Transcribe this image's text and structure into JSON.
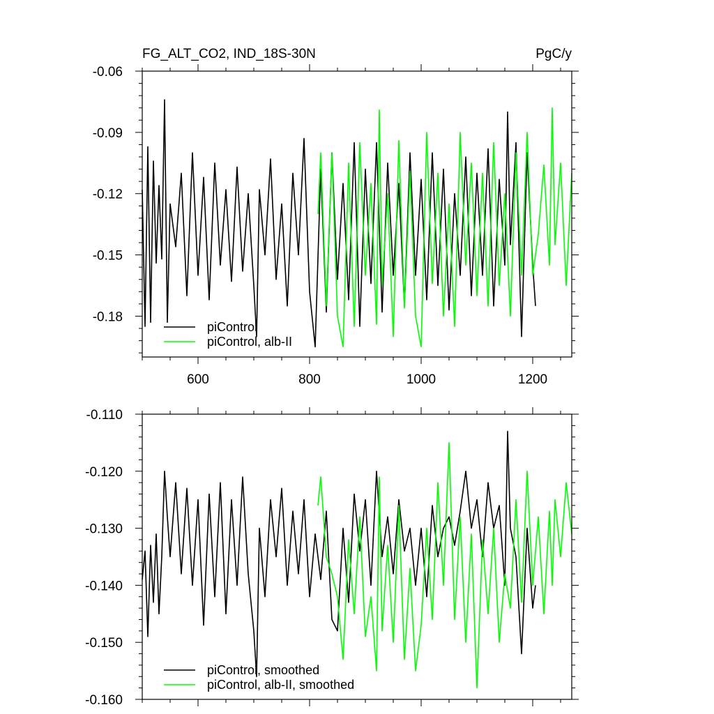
{
  "chart_data": [
    {
      "type": "line",
      "title": "FG_ALT_CO2, IND_18S-30N",
      "units": "PgC/y",
      "xlim": [
        500,
        1270
      ],
      "ylim": [
        -0.2,
        -0.06
      ],
      "x_ticks": [
        600,
        800,
        1000,
        1200
      ],
      "x_tick_labels": [
        "600",
        "800",
        "1000",
        "1200"
      ],
      "y_ticks": [
        -0.06,
        -0.09,
        -0.12,
        -0.15,
        -0.18
      ],
      "y_tick_labels": [
        "-0.06",
        "-0.09",
        "-0.12",
        "-0.15",
        "-0.18"
      ],
      "legend_position": "bottom-left",
      "series": [
        {
          "name": "piControl",
          "color": "#000000",
          "x_range": [
            500,
            1205
          ],
          "x": [
            500,
            505,
            510,
            515,
            520,
            525,
            530,
            535,
            540,
            545,
            550,
            560,
            570,
            580,
            590,
            600,
            610,
            620,
            630,
            640,
            650,
            660,
            670,
            680,
            690,
            700,
            705,
            710,
            720,
            730,
            740,
            750,
            760,
            770,
            780,
            790,
            800,
            810,
            820,
            830,
            840,
            850,
            860,
            870,
            880,
            890,
            900,
            910,
            920,
            930,
            940,
            950,
            960,
            970,
            980,
            990,
            1000,
            1010,
            1020,
            1030,
            1040,
            1050,
            1060,
            1070,
            1080,
            1090,
            1100,
            1110,
            1120,
            1130,
            1140,
            1150,
            1155,
            1160,
            1170,
            1180,
            1190,
            1200,
            1205
          ],
          "y": [
            -0.118,
            -0.185,
            -0.097,
            -0.183,
            -0.104,
            -0.154,
            -0.116,
            -0.152,
            -0.074,
            -0.183,
            -0.125,
            -0.146,
            -0.11,
            -0.17,
            -0.1,
            -0.16,
            -0.112,
            -0.172,
            -0.105,
            -0.155,
            -0.118,
            -0.163,
            -0.107,
            -0.158,
            -0.12,
            -0.165,
            -0.19,
            -0.118,
            -0.15,
            -0.103,
            -0.162,
            -0.125,
            -0.175,
            -0.11,
            -0.15,
            -0.093,
            -0.168,
            -0.195,
            -0.108,
            -0.178,
            -0.1,
            -0.162,
            -0.115,
            -0.172,
            -0.095,
            -0.185,
            -0.108,
            -0.164,
            -0.095,
            -0.178,
            -0.105,
            -0.16,
            -0.115,
            -0.175,
            -0.1,
            -0.16,
            -0.113,
            -0.172,
            -0.1,
            -0.165,
            -0.108,
            -0.177,
            -0.12,
            -0.16,
            -0.102,
            -0.17,
            -0.11,
            -0.16,
            -0.098,
            -0.175,
            -0.113,
            -0.155,
            -0.08,
            -0.145,
            -0.095,
            -0.19,
            -0.1,
            -0.155,
            -0.175
          ]
        },
        {
          "name": "piControl, alb-II",
          "color": "#00ff00",
          "x_range": [
            815,
            1270
          ],
          "x": [
            815,
            820,
            830,
            840,
            850,
            860,
            870,
            880,
            890,
            900,
            910,
            920,
            925,
            930,
            940,
            950,
            960,
            970,
            980,
            990,
            1000,
            1010,
            1020,
            1030,
            1040,
            1050,
            1060,
            1070,
            1080,
            1090,
            1100,
            1110,
            1120,
            1130,
            1140,
            1150,
            1160,
            1170,
            1180,
            1190,
            1200,
            1210,
            1220,
            1230,
            1235,
            1240,
            1250,
            1260,
            1270
          ],
          "y": [
            -0.13,
            -0.1,
            -0.175,
            -0.1,
            -0.18,
            -0.195,
            -0.105,
            -0.185,
            -0.095,
            -0.16,
            -0.115,
            -0.184,
            -0.079,
            -0.165,
            -0.12,
            -0.19,
            -0.094,
            -0.176,
            -0.109,
            -0.18,
            -0.195,
            -0.09,
            -0.164,
            -0.11,
            -0.18,
            -0.125,
            -0.185,
            -0.09,
            -0.155,
            -0.105,
            -0.17,
            -0.11,
            -0.175,
            -0.095,
            -0.165,
            -0.12,
            -0.18,
            -0.1,
            -0.16,
            -0.09,
            -0.16,
            -0.14,
            -0.106,
            -0.155,
            -0.078,
            -0.145,
            -0.105,
            -0.165,
            -0.11
          ]
        }
      ]
    },
    {
      "type": "line",
      "xlim": [
        500,
        1270
      ],
      "ylim": [
        -0.16,
        -0.11
      ],
      "x_ticks": [
        600,
        800,
        1000,
        1200
      ],
      "y_ticks": [
        -0.11,
        -0.12,
        -0.13,
        -0.14,
        -0.15,
        -0.16
      ],
      "y_tick_labels": [
        "-0.110",
        "-0.120",
        "-0.130",
        "-0.140",
        "-0.150",
        "-0.160"
      ],
      "legend_position": "bottom-left",
      "series": [
        {
          "name": "piControl, smoothed",
          "color": "#000000",
          "x": [
            500,
            505,
            510,
            515,
            520,
            525,
            530,
            535,
            540,
            545,
            550,
            560,
            570,
            580,
            590,
            600,
            610,
            620,
            630,
            640,
            650,
            660,
            670,
            680,
            690,
            700,
            705,
            710,
            720,
            730,
            740,
            750,
            760,
            770,
            780,
            790,
            800,
            810,
            820,
            830,
            840,
            850,
            860,
            870,
            880,
            890,
            900,
            910,
            920,
            930,
            940,
            950,
            960,
            970,
            980,
            990,
            1000,
            1010,
            1020,
            1030,
            1040,
            1050,
            1060,
            1070,
            1080,
            1090,
            1100,
            1110,
            1120,
            1130,
            1140,
            1150,
            1155,
            1160,
            1170,
            1180,
            1190,
            1200,
            1205
          ],
          "y": [
            -0.139,
            -0.134,
            -0.149,
            -0.133,
            -0.143,
            -0.131,
            -0.145,
            -0.135,
            -0.12,
            -0.128,
            -0.135,
            -0.122,
            -0.138,
            -0.123,
            -0.14,
            -0.125,
            -0.147,
            -0.124,
            -0.142,
            -0.122,
            -0.145,
            -0.125,
            -0.14,
            -0.121,
            -0.138,
            -0.148,
            -0.156,
            -0.13,
            -0.142,
            -0.125,
            -0.135,
            -0.123,
            -0.14,
            -0.127,
            -0.138,
            -0.125,
            -0.142,
            -0.131,
            -0.139,
            -0.127,
            -0.146,
            -0.148,
            -0.13,
            -0.143,
            -0.124,
            -0.134,
            -0.125,
            -0.14,
            -0.12,
            -0.135,
            -0.128,
            -0.138,
            -0.125,
            -0.134,
            -0.13,
            -0.14,
            -0.13,
            -0.142,
            -0.126,
            -0.135,
            -0.13,
            -0.128,
            -0.133,
            -0.127,
            -0.12,
            -0.13,
            -0.125,
            -0.135,
            -0.122,
            -0.13,
            -0.126,
            -0.14,
            -0.113,
            -0.13,
            -0.135,
            -0.152,
            -0.13,
            -0.144,
            -0.14
          ]
        },
        {
          "name": "piControl, alb-II, smoothed",
          "color": "#00ff00",
          "x": [
            815,
            820,
            830,
            840,
            850,
            860,
            870,
            880,
            890,
            900,
            910,
            920,
            925,
            930,
            940,
            950,
            960,
            970,
            980,
            990,
            1000,
            1010,
            1020,
            1030,
            1040,
            1050,
            1060,
            1070,
            1080,
            1090,
            1100,
            1110,
            1120,
            1130,
            1140,
            1150,
            1160,
            1170,
            1180,
            1190,
            1200,
            1210,
            1220,
            1230,
            1235,
            1240,
            1250,
            1260,
            1270
          ],
          "y": [
            -0.126,
            -0.121,
            -0.135,
            -0.138,
            -0.142,
            -0.153,
            -0.132,
            -0.145,
            -0.128,
            -0.149,
            -0.142,
            -0.155,
            -0.121,
            -0.148,
            -0.133,
            -0.15,
            -0.126,
            -0.153,
            -0.137,
            -0.155,
            -0.147,
            -0.13,
            -0.146,
            -0.122,
            -0.14,
            -0.115,
            -0.146,
            -0.128,
            -0.15,
            -0.131,
            -0.158,
            -0.132,
            -0.145,
            -0.13,
            -0.15,
            -0.138,
            -0.144,
            -0.125,
            -0.143,
            -0.12,
            -0.14,
            -0.128,
            -0.145,
            -0.127,
            -0.14,
            -0.125,
            -0.135,
            -0.122,
            -0.131
          ]
        }
      ]
    }
  ]
}
